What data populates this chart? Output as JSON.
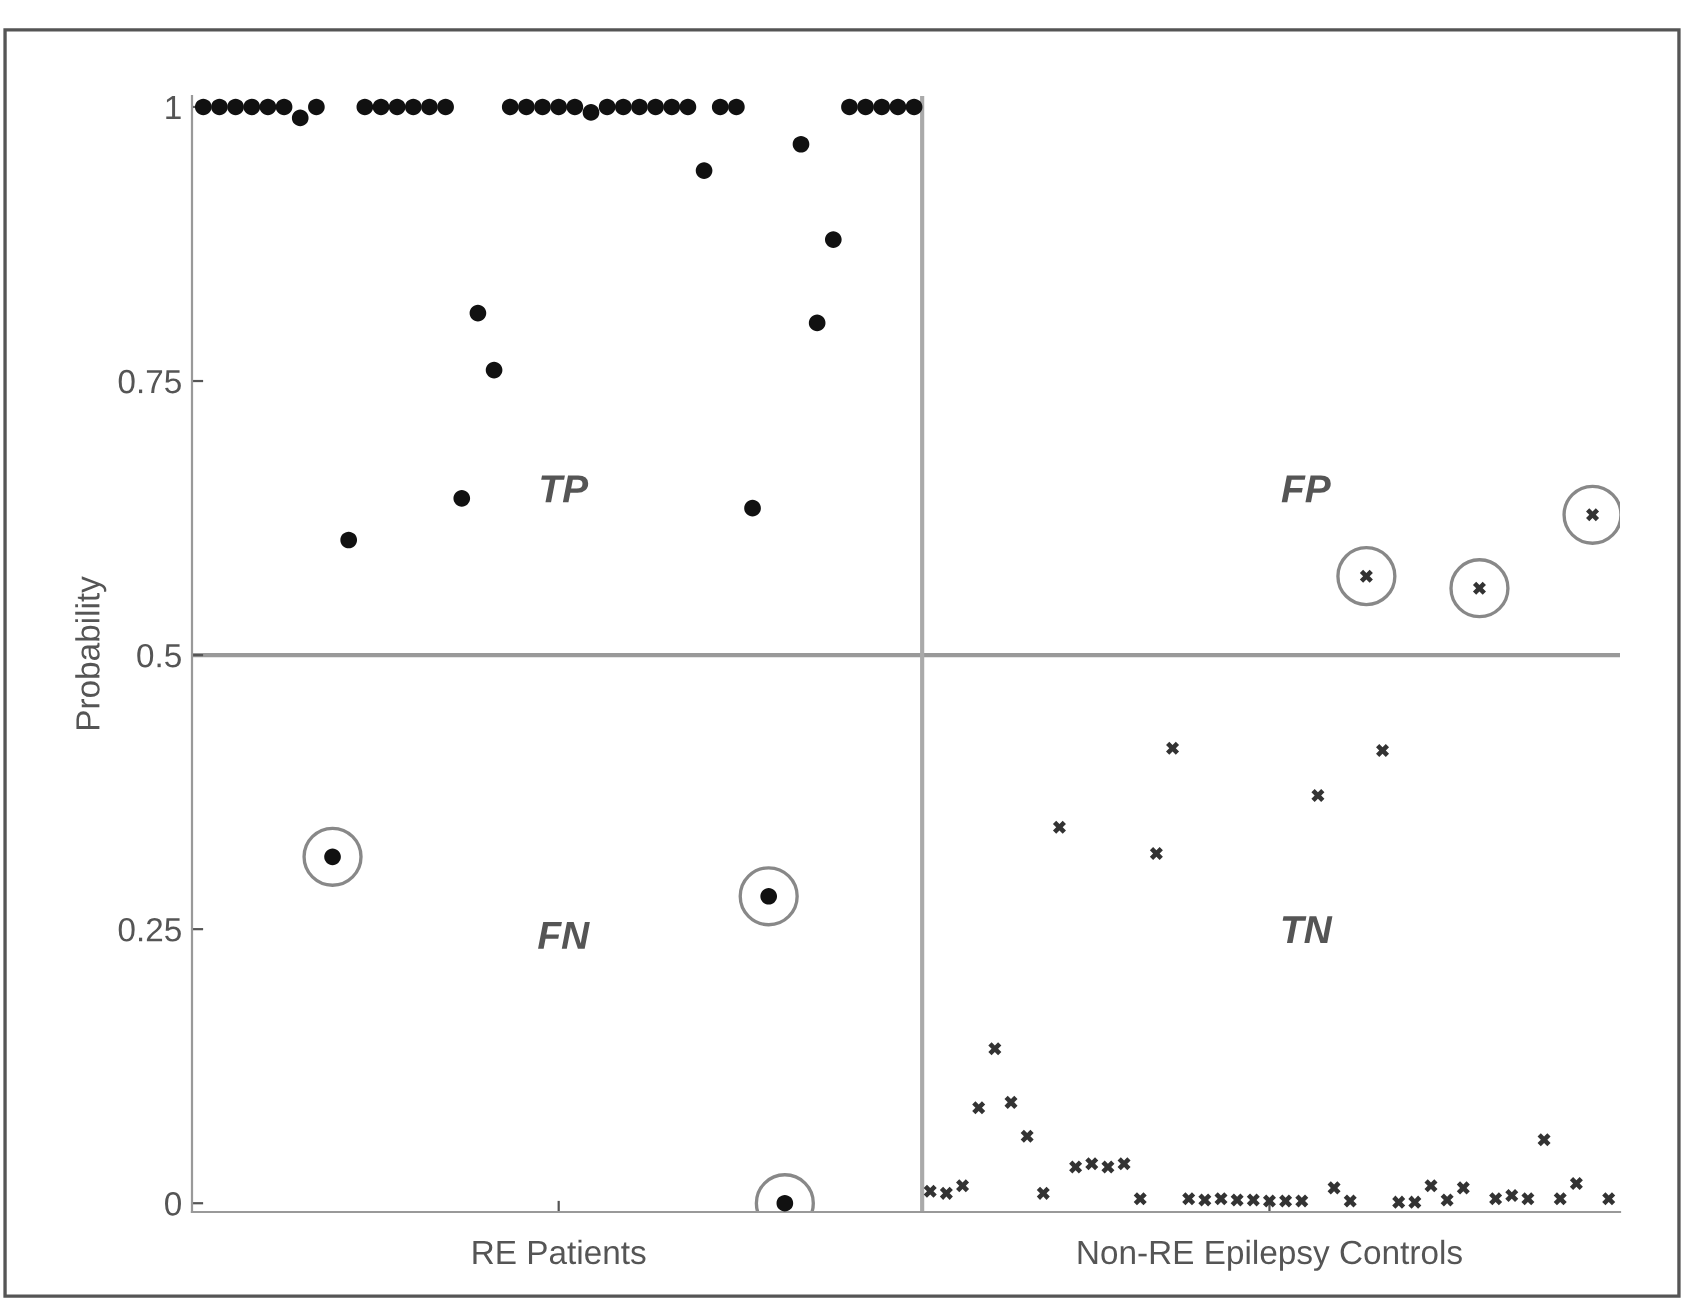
{
  "chart_data": {
    "type": "scatter",
    "ylabel": "Probability",
    "categories": [
      null,
      null,
      null,
      null,
      null,
      null,
      null,
      null,
      null,
      null,
      null,
      null,
      null,
      null,
      null,
      null,
      null,
      null,
      null,
      null,
      null,
      null,
      "RE Patients",
      null,
      null,
      null,
      null,
      null,
      null,
      null,
      null,
      null,
      null,
      null,
      null,
      null,
      null,
      null,
      null,
      null,
      null,
      null,
      null,
      null,
      null,
      null,
      null,
      null,
      null,
      null,
      null,
      null,
      null,
      null,
      null,
      null,
      null,
      null,
      null,
      null,
      null,
      null,
      null,
      null,
      null,
      null,
      "Non-RE Epilepsy Controls",
      null,
      null,
      null,
      null,
      null,
      null,
      null,
      null,
      null,
      null,
      null,
      null,
      null,
      null,
      null,
      null,
      null,
      null,
      null,
      null,
      null
    ],
    "ylim": [
      -0.008,
      1.01
    ],
    "yticks": [
      0,
      0.25,
      0.5,
      0.75,
      1
    ],
    "grid": false,
    "ref_lines": [
      {
        "axis": "y",
        "value": 0.5,
        "color": "#999999"
      }
    ],
    "annotations": [
      "TP",
      "FP",
      "FN",
      "TN"
    ],
    "series": [
      {
        "color": "#111111",
        "marker": "circle",
        "values": [
          1,
          1,
          1,
          1,
          1,
          1,
          0.99,
          1,
          0.316,
          0.605,
          1,
          1,
          1,
          1,
          1,
          1,
          0.643,
          0.812,
          0.76,
          1,
          1,
          1,
          1,
          1,
          0.995,
          1,
          1,
          1,
          1,
          1,
          1,
          0.942,
          1,
          1,
          0.634,
          0.28,
          0.0,
          0.966,
          0.803,
          0.879,
          1,
          1,
          1,
          1,
          1,
          null,
          null,
          null,
          null,
          null,
          null,
          null,
          null,
          null,
          null,
          null,
          null,
          null,
          null,
          null,
          null,
          null,
          null,
          null,
          null,
          null,
          null,
          null,
          null,
          null,
          null,
          null,
          null,
          null,
          null,
          null,
          null,
          null,
          null,
          null,
          null,
          null,
          null,
          null,
          null,
          null,
          null,
          null
        ]
      },
      {
        "color": "#333333",
        "marker": "cross",
        "values": [
          null,
          null,
          null,
          null,
          null,
          null,
          null,
          null,
          null,
          null,
          null,
          null,
          null,
          null,
          null,
          null,
          null,
          null,
          null,
          null,
          null,
          null,
          null,
          null,
          null,
          null,
          null,
          null,
          null,
          null,
          null,
          null,
          null,
          null,
          null,
          null,
          null,
          null,
          null,
          null,
          null,
          null,
          null,
          null,
          null,
          0.011,
          0.009,
          0.016,
          0.087,
          0.141,
          0.092,
          0.061,
          0.009,
          0.343,
          0.033,
          0.036,
          0.033,
          0.036,
          0.004,
          0.319,
          0.415,
          0.004,
          0.003,
          0.004,
          0.003,
          0.003,
          0.002,
          0.002,
          0.002,
          0.372,
          0.014,
          0.002,
          0.572,
          0.413,
          0.001,
          0.001,
          0.016,
          0.003,
          0.014,
          0.561,
          0.004,
          0.007,
          0.004,
          0.058,
          0.004,
          0.018,
          0.628,
          0.004
        ]
      },
      {
        "type": "bubble",
        "color": "#888888",
        "values": [
          null,
          null,
          null,
          null,
          null,
          null,
          null,
          null,
          0.316,
          null,
          null,
          null,
          null,
          null,
          null,
          null,
          null,
          null,
          null,
          null,
          null,
          null,
          null,
          null,
          null,
          null,
          null,
          null,
          null,
          null,
          null,
          null,
          null,
          null,
          null,
          0.28,
          0.0,
          null,
          null,
          null,
          null,
          null,
          null,
          null,
          null,
          null,
          null,
          null,
          null,
          null,
          null,
          null,
          null,
          null,
          null,
          null,
          null,
          null,
          null,
          null,
          null,
          null,
          null,
          null,
          null,
          null,
          null,
          null,
          null,
          null,
          null,
          null,
          0.572,
          null,
          null,
          null,
          null,
          null,
          null,
          0.561,
          null,
          null,
          null,
          null,
          null,
          null,
          0.628,
          null
        ],
        "sizes": [
          null,
          null,
          null,
          null,
          null,
          null,
          null,
          null,
          1,
          null,
          null,
          null,
          null,
          null,
          null,
          null,
          null,
          null,
          null,
          null,
          null,
          null,
          null,
          null,
          null,
          null,
          null,
          null,
          null,
          null,
          null,
          null,
          null,
          null,
          null,
          1,
          1,
          null,
          null,
          null,
          null,
          null,
          null,
          null,
          null,
          null,
          null,
          null,
          null,
          null,
          null,
          null,
          null,
          null,
          null,
          null,
          null,
          null,
          null,
          null,
          null,
          null,
          null,
          null,
          null,
          null,
          null,
          null,
          null,
          null,
          null,
          null,
          1,
          null,
          null,
          null,
          null,
          null,
          null,
          1,
          null,
          null,
          null,
          null,
          null,
          null,
          1,
          null
        ]
      }
    ]
  }
}
